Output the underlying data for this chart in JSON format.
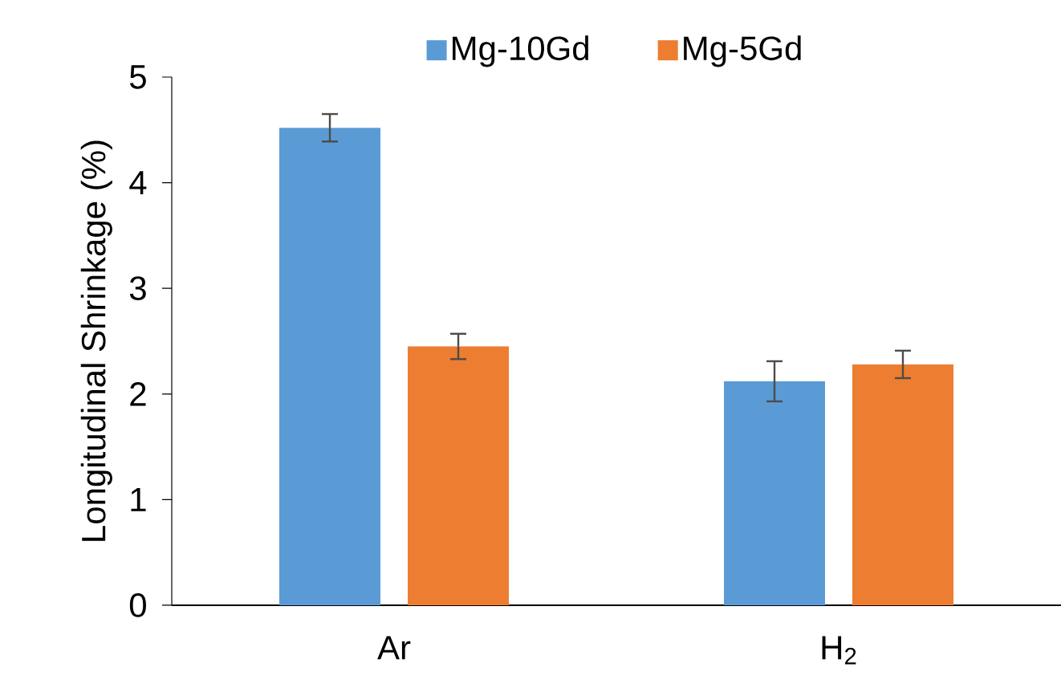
{
  "chart_data": {
    "type": "bar",
    "ylabel": "Longitudinal Shrinkage (%)",
    "categories": [
      "Ar",
      "H$_{2}$"
    ],
    "series": [
      {
        "name": "Mg-10Gd",
        "color": "#5b9bd5",
        "values": [
          4.52,
          2.12
        ],
        "errors": [
          0.13,
          0.19
        ]
      },
      {
        "name": "Mg-5Gd",
        "color": "#ed7d31",
        "values": [
          2.45,
          2.28
        ],
        "errors": [
          0.12,
          0.13
        ]
      }
    ],
    "ylim": [
      0,
      5
    ],
    "yticks": [
      0,
      1,
      2,
      3,
      4,
      5
    ],
    "grid": false,
    "legend": "top"
  }
}
